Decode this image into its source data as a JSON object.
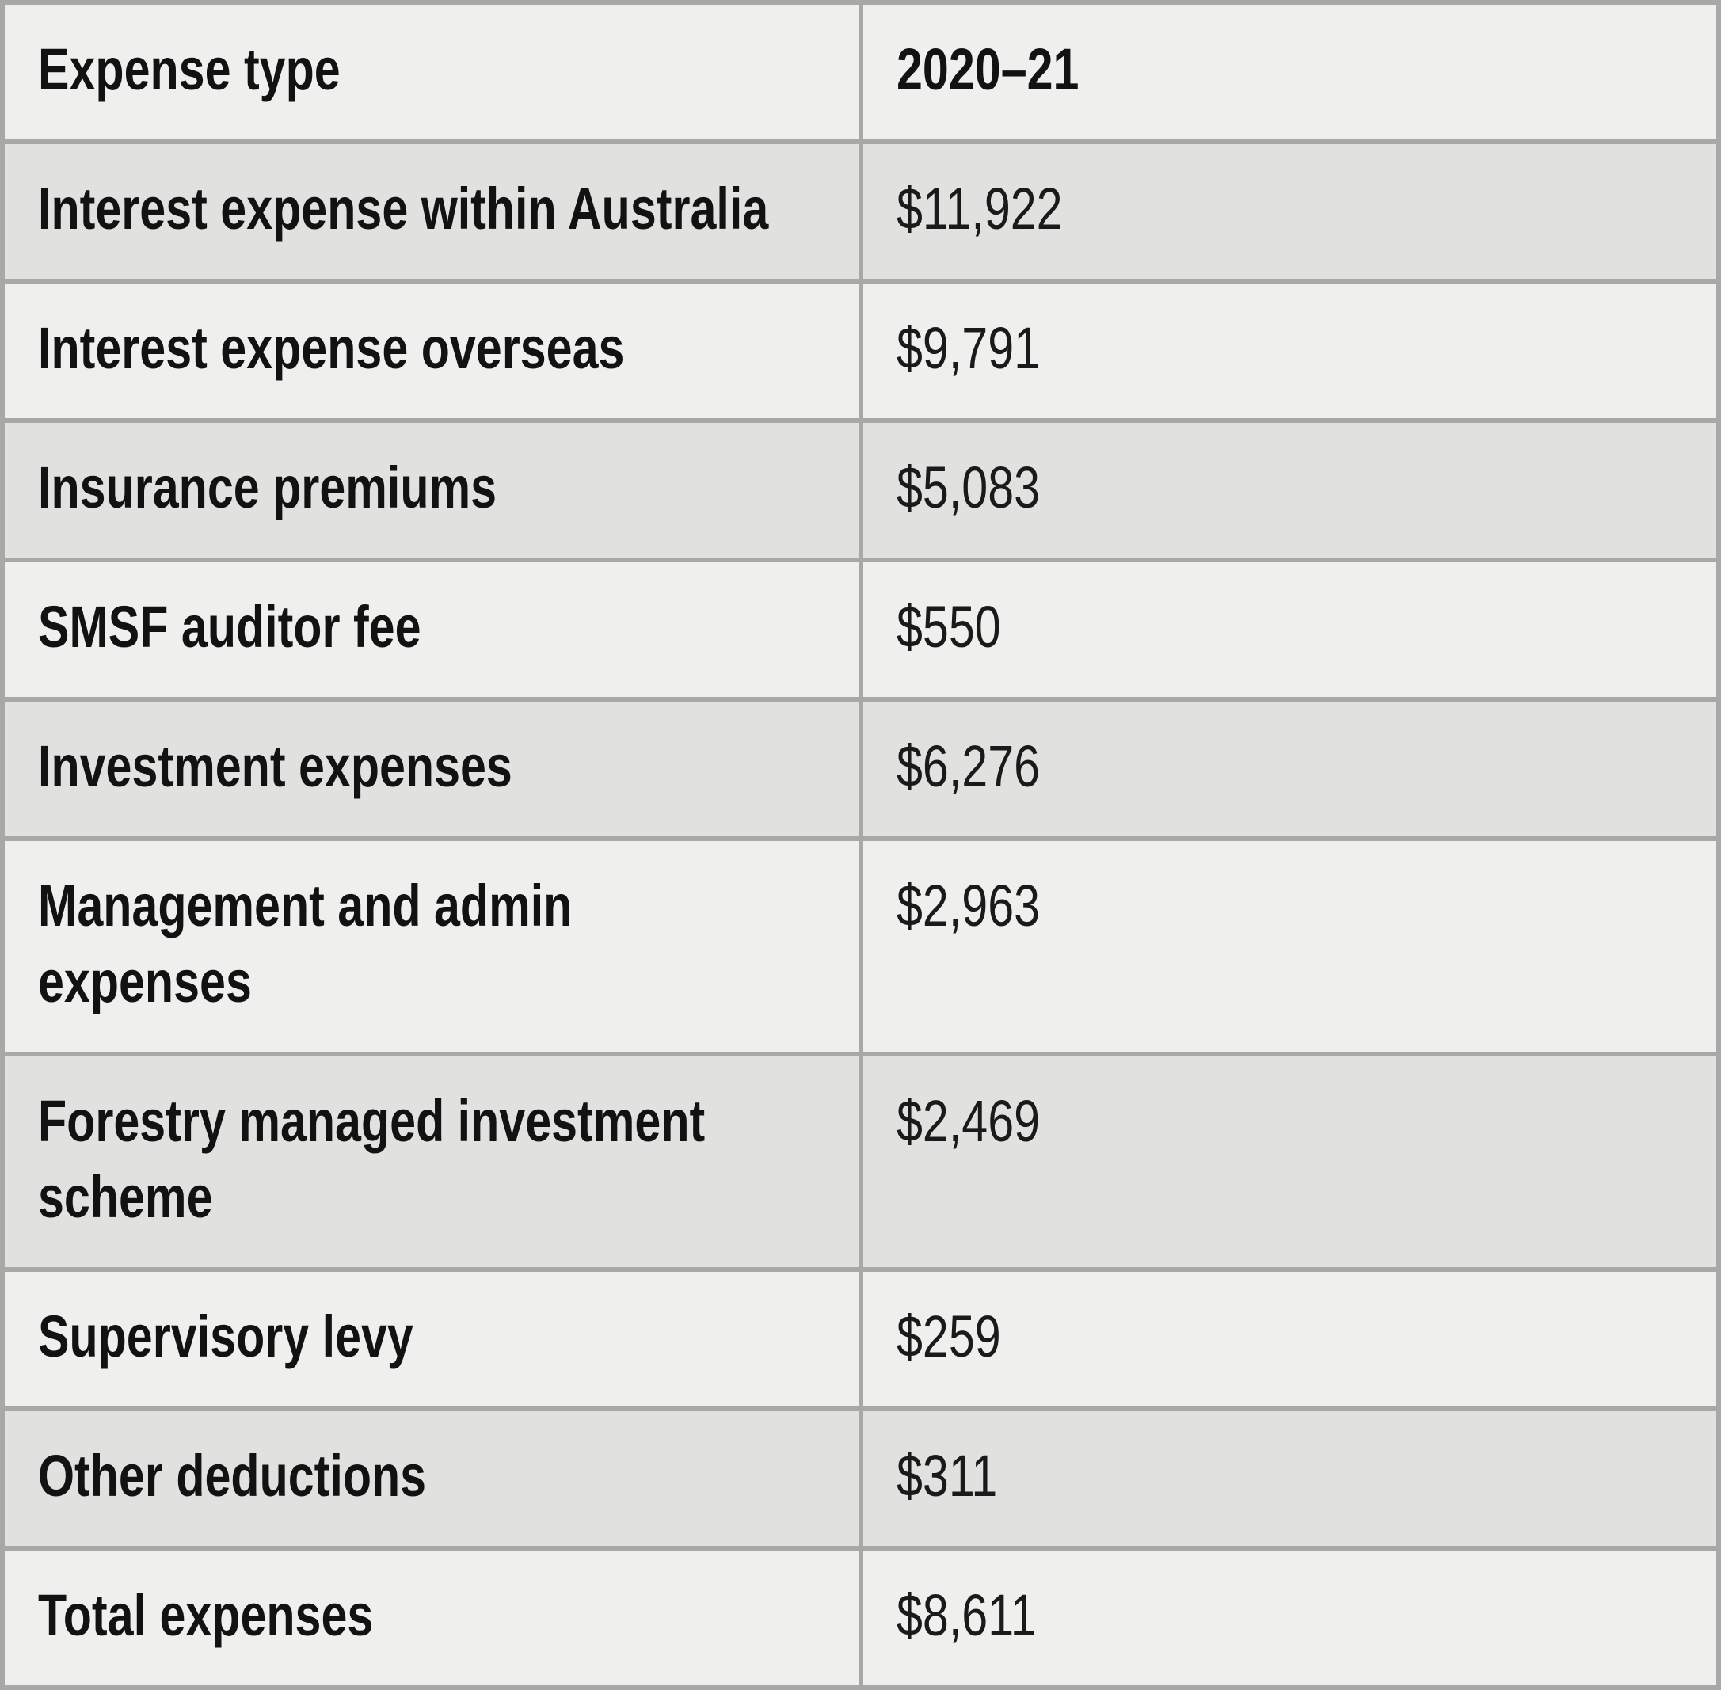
{
  "table": {
    "columns": [
      {
        "label": "Expense type"
      },
      {
        "label": "2020–21"
      }
    ],
    "rows": [
      {
        "label": "Interest expense within Australia",
        "value": "$11,922"
      },
      {
        "label": "Interest expense overseas",
        "value": "$9,791"
      },
      {
        "label": "Insurance premiums",
        "value": "$5,083"
      },
      {
        "label": "SMSF auditor fee",
        "value": "$550"
      },
      {
        "label": "Investment expenses",
        "value": "$6,276"
      },
      {
        "label": "Management and admin\nexpenses",
        "value": "$2,963"
      },
      {
        "label": "Forestry managed investment\nscheme",
        "value": "$2,469"
      },
      {
        "label": "Supervisory levy",
        "value": "$259"
      },
      {
        "label": "Other deductions",
        "value": "$311"
      },
      {
        "label": "Total expenses",
        "value": "$8,611"
      }
    ],
    "colors": {
      "row_light": "#efefee",
      "row_dark": "#e1e1df",
      "border": "#a8a8a6",
      "text": "#121212"
    }
  }
}
